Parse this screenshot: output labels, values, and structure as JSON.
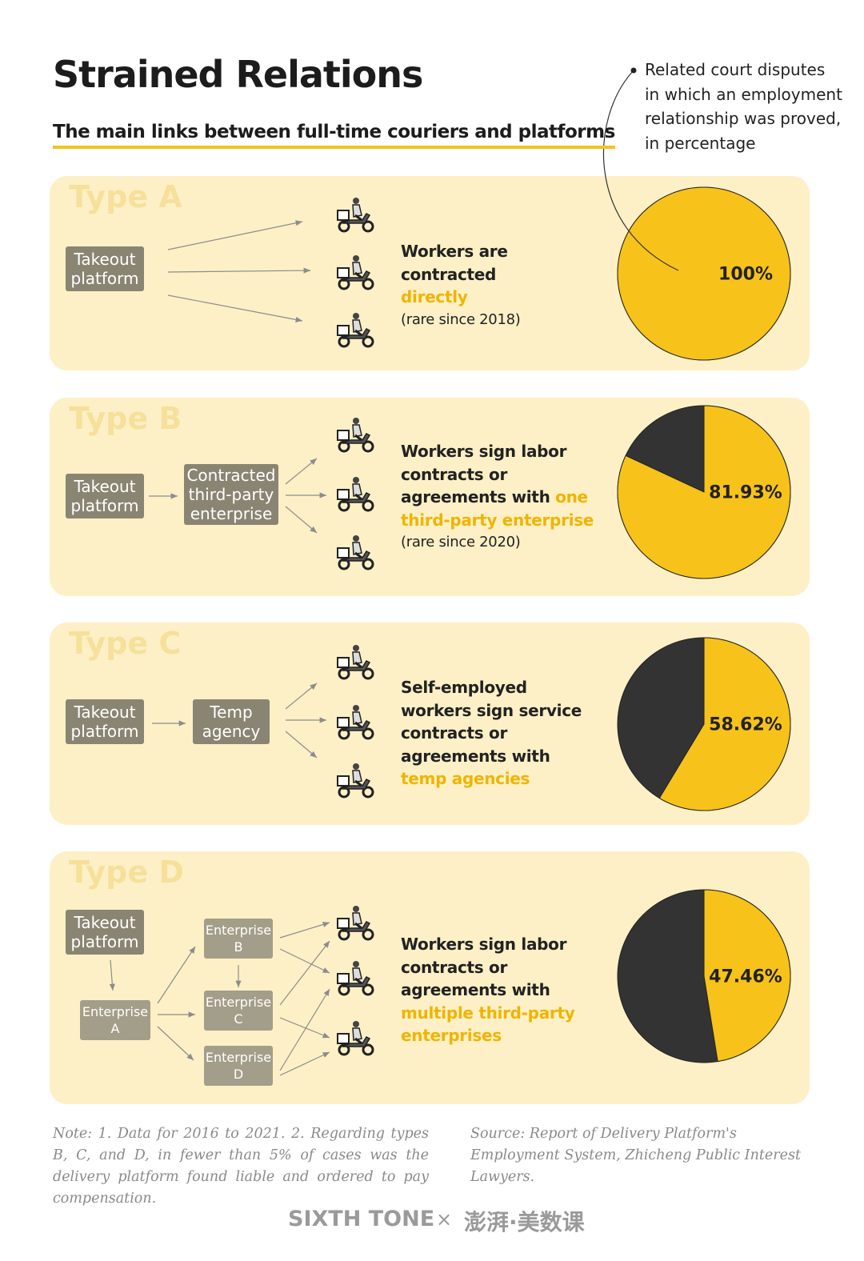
{
  "header": {
    "title": "Strained Relations",
    "subtitle": "The main links between full-time couriers and platforms"
  },
  "pie_legend": [
    "Related court disputes",
    "in which an employment",
    "relationship was proved,",
    "in percentage"
  ],
  "types": [
    {
      "label": "Type A",
      "nodes": [
        "Takeout platform"
      ],
      "description": [
        {
          "text": "Workers are contracted "
        },
        {
          "text": "directly",
          "highlight": true
        }
      ],
      "description_note": "(rare since 2018)",
      "value": 100,
      "value_label": "100%"
    },
    {
      "label": "Type B",
      "nodes": [
        "Takeout platform",
        "Contracted third-party enterprise"
      ],
      "description": [
        {
          "text": "Workers sign labor contracts or agreements with "
        },
        {
          "text": "one third-party enterprise",
          "highlight": true
        }
      ],
      "description_note": "(rare since 2020)",
      "value": 81.93,
      "value_label": "81.93%"
    },
    {
      "label": "Type C",
      "nodes": [
        "Takeout platform",
        "Temp agency"
      ],
      "description": [
        {
          "text": "Self-employed workers sign service contracts or agreements with "
        },
        {
          "text": "temp agencies",
          "highlight": true
        }
      ],
      "value": 58.62,
      "value_label": "58.62%"
    },
    {
      "label": "Type D",
      "nodes": [
        "Takeout platform",
        "Enterprise A",
        "Enterprise B",
        "Enterprise C",
        "Enterprise D"
      ],
      "description": [
        {
          "text": "Workers sign labor contracts or agreements with "
        },
        {
          "text": "multiple third-party enterprises",
          "highlight": true
        }
      ],
      "value": 47.46,
      "value_label": "47.46%"
    }
  ],
  "colors": {
    "value": "#f7c21a",
    "rest": "#333333"
  },
  "note": "Note: 1. Data for 2016 to 2021. 2. Regarding types B, C, and D, in fewer than 5% of cases was the delivery platform found liable and ordered to pay compensation.",
  "source": "Source: Report of Delivery Platform's Employment System, Zhicheng Public Interest Lawyers.",
  "footer": {
    "brand": "SIXTH TONE",
    "separator": "×",
    "partner": "澎湃·美数课"
  }
}
